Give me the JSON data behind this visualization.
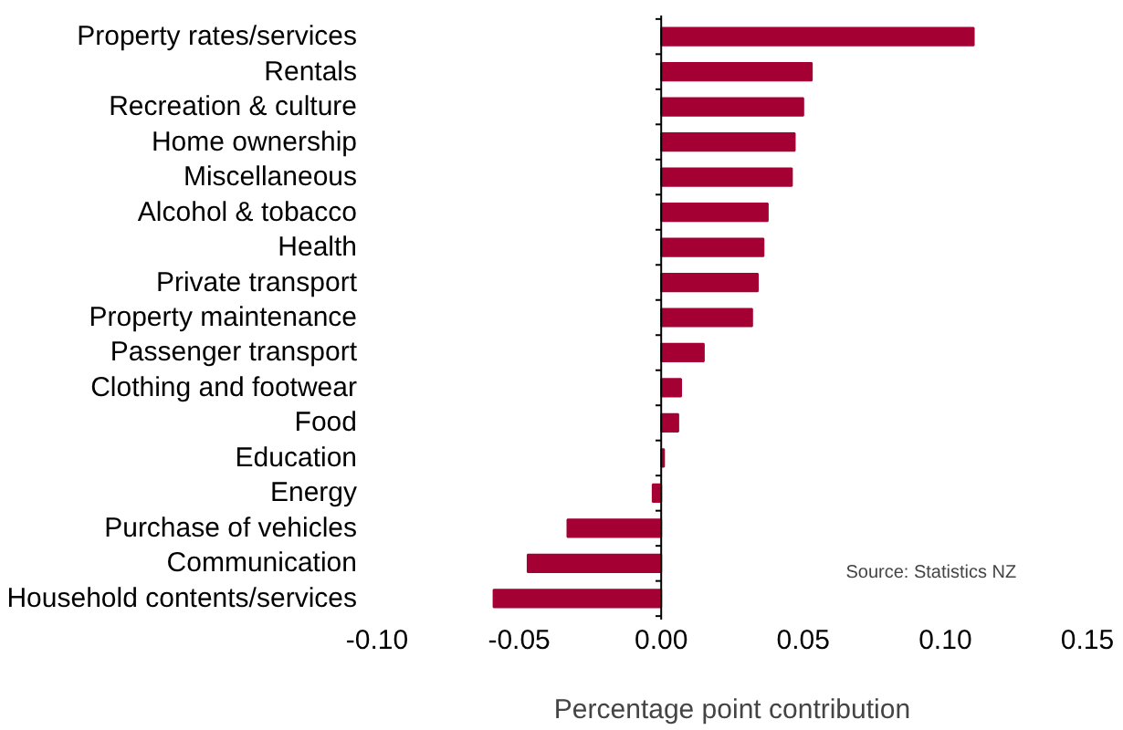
{
  "chart_data": {
    "type": "bar",
    "orientation": "horizontal",
    "xlabel": "Percentage point contribution",
    "categories": [
      "Property rates/services",
      "Rentals",
      "Recreation & culture",
      "Home ownership",
      "Miscellaneous",
      "Alcohol & tobacco",
      "Health",
      "Private transport",
      "Property maintenance",
      "Passenger transport",
      "Clothing and footwear",
      "Food",
      "Education",
      "Energy",
      "Purchase of vehicles",
      "Communication",
      "Household contents/services"
    ],
    "values": [
      0.11,
      0.053,
      0.05,
      0.047,
      0.046,
      0.0375,
      0.036,
      0.034,
      0.032,
      0.015,
      0.007,
      0.006,
      0.001,
      -0.003,
      -0.033,
      -0.047,
      -0.059
    ],
    "color": "#a50034",
    "xlim": [
      -0.1,
      0.15
    ],
    "xticks": [
      {
        "value": -0.1,
        "label": "-0.10"
      },
      {
        "value": -0.05,
        "label": "-0.05"
      },
      {
        "value": 0,
        "label": "0.00"
      },
      {
        "value": 0.05,
        "label": "0.05"
      },
      {
        "value": 0.1,
        "label": "0.10"
      },
      {
        "value": 0.15,
        "label": "0.15"
      }
    ],
    "annotations": [
      "Source: Statistics NZ"
    ],
    "data_labels": false
  }
}
